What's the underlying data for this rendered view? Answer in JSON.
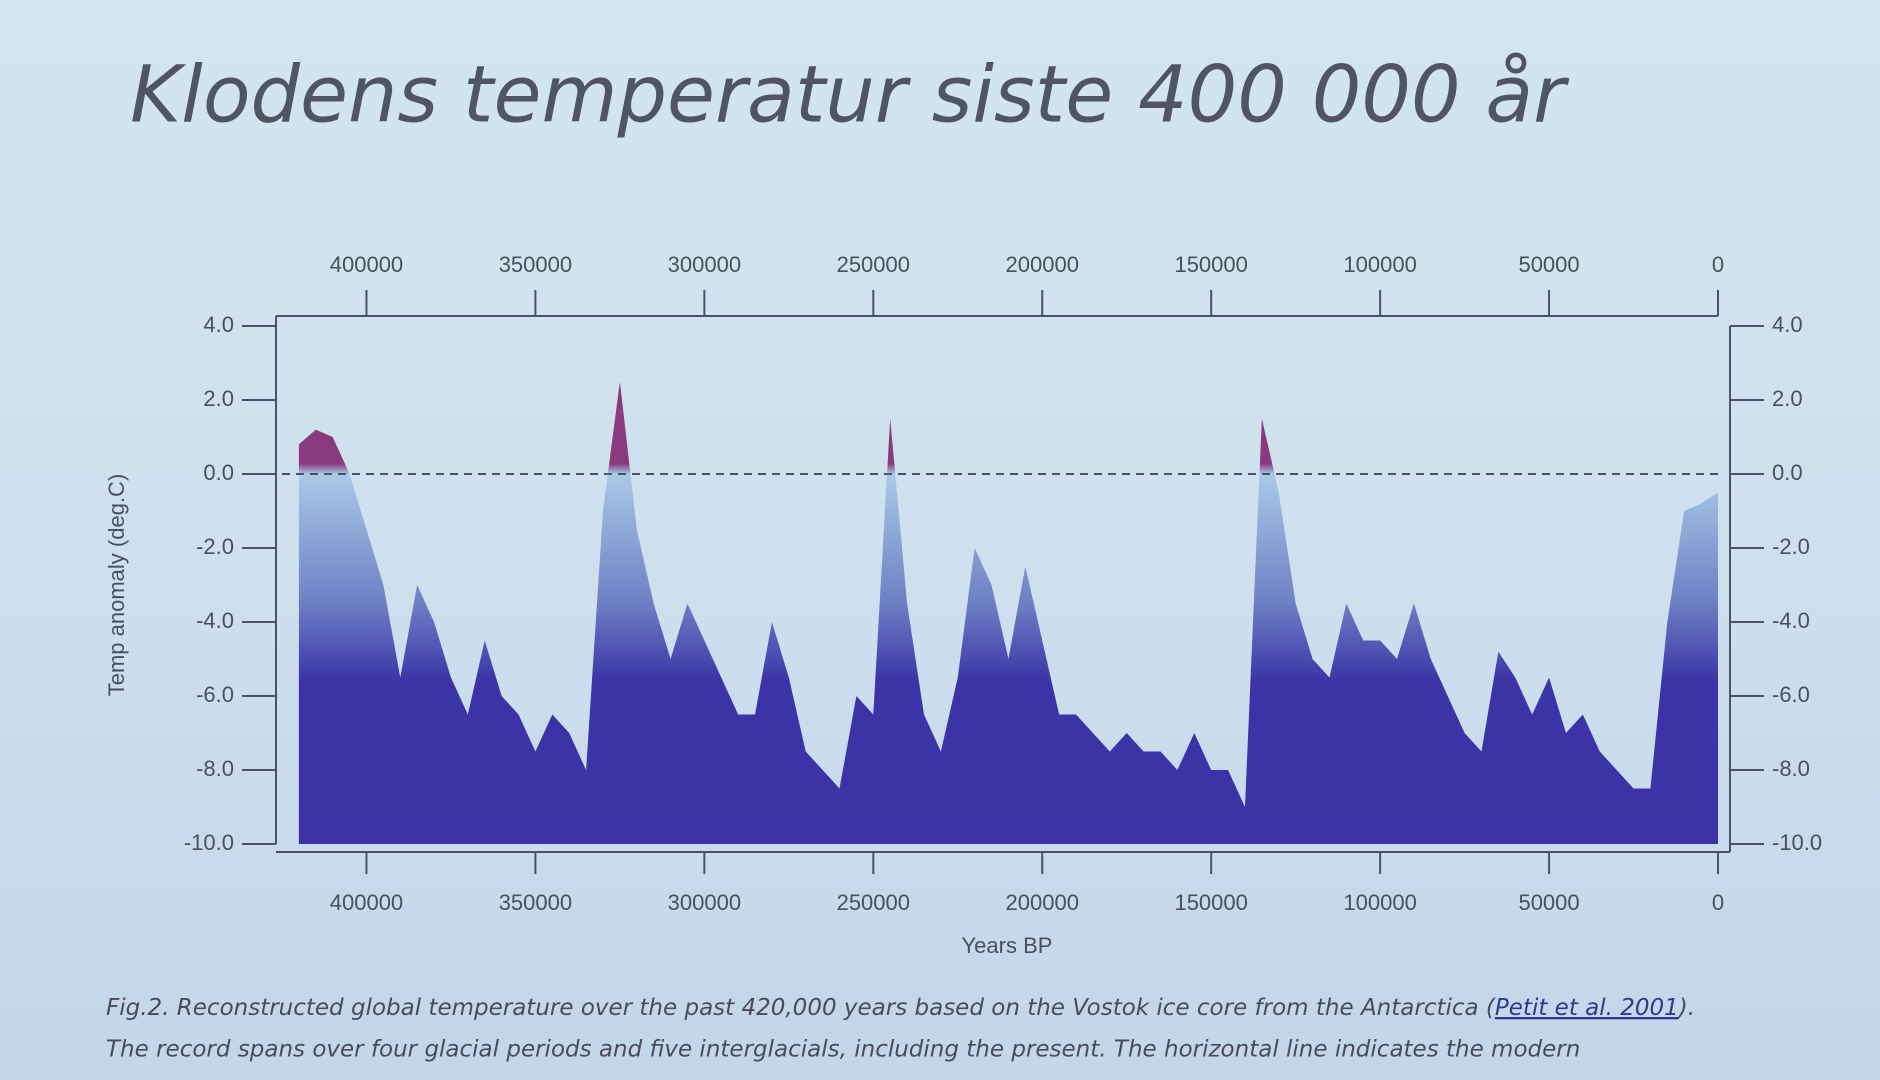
{
  "chart_data": {
    "type": "area",
    "title": "Klodens temperatur siste 400 000 år",
    "y_label": "Temp anomaly (deg.C)",
    "x_label": "Years BP",
    "xlim": [
      425000,
      0
    ],
    "xticks": [
      400000,
      350000,
      300000,
      250000,
      200000,
      150000,
      100000,
      50000,
      0
    ],
    "ylim": [
      -10,
      4
    ],
    "yticks": [
      {
        "value": -10,
        "label": "-10.0"
      },
      {
        "value": -8,
        "label": "-8.0"
      },
      {
        "value": -6,
        "label": "-6.0"
      },
      {
        "value": -4,
        "label": "-4.0"
      },
      {
        "value": -2,
        "label": "-2.0"
      },
      {
        "value": 0,
        "label": "0.0"
      },
      {
        "value": 2,
        "label": "2.0"
      },
      {
        "value": 4,
        "label": "4.0"
      }
    ],
    "reference_line": 0,
    "color": "#3b34a6",
    "top_color": "#a9c9e6",
    "warm_color": "#8a3a7e",
    "x": [
      420000,
      415000,
      410000,
      405000,
      400000,
      395000,
      390000,
      385000,
      380000,
      375000,
      370000,
      365000,
      360000,
      355000,
      350000,
      345000,
      340000,
      335000,
      330000,
      325000,
      320000,
      315000,
      310000,
      305000,
      300000,
      295000,
      290000,
      285000,
      280000,
      275000,
      270000,
      265000,
      260000,
      255000,
      250000,
      245000,
      240000,
      235000,
      230000,
      225000,
      220000,
      215000,
      210000,
      205000,
      200000,
      195000,
      190000,
      185000,
      180000,
      175000,
      170000,
      165000,
      160000,
      155000,
      150000,
      145000,
      140000,
      135000,
      130000,
      125000,
      120000,
      115000,
      110000,
      105000,
      100000,
      95000,
      90000,
      85000,
      80000,
      75000,
      70000,
      65000,
      60000,
      55000,
      50000,
      45000,
      40000,
      35000,
      30000,
      25000,
      20000,
      15000,
      10000,
      5000,
      0
    ],
    "values": [
      0.8,
      1.2,
      1.0,
      0.0,
      -1.5,
      -3.0,
      -5.5,
      -3.0,
      -4.0,
      -5.5,
      -6.5,
      -4.5,
      -6.0,
      -6.5,
      -7.5,
      -6.5,
      -7.0,
      -8.0,
      -1.0,
      2.5,
      -1.5,
      -3.5,
      -5.0,
      -3.5,
      -4.5,
      -5.5,
      -6.5,
      -6.5,
      -4.0,
      -5.5,
      -7.5,
      -8.0,
      -8.5,
      -6.0,
      -6.5,
      1.5,
      -3.5,
      -6.5,
      -7.5,
      -5.5,
      -2.0,
      -3.0,
      -5.0,
      -2.5,
      -4.5,
      -6.5,
      -6.5,
      -7.0,
      -7.5,
      -7.0,
      -7.5,
      -7.5,
      -8.0,
      -7.0,
      -8.0,
      -8.0,
      -9.0,
      1.5,
      -0.5,
      -3.5,
      -5.0,
      -5.5,
      -3.5,
      -4.5,
      -4.5,
      -5.0,
      -3.5,
      -5.0,
      -6.0,
      -7.0,
      -7.5,
      -4.8,
      -5.5,
      -6.5,
      -5.5,
      -7.0,
      -6.5,
      -7.5,
      -8.0,
      -8.5,
      -8.5,
      -4.0,
      -1.0,
      -0.8,
      -0.5
    ],
    "caption": {
      "text_before": "Fig.2. Reconstructed global temperature over the past 420,000 years based on the Vostok ice core from the Antarctica (",
      "link": "Petit et al. 2001",
      "text_after": ").",
      "line2": "The record spans over four glacial periods and five interglacials, including the present. The horizontal line indicates the modern"
    }
  }
}
